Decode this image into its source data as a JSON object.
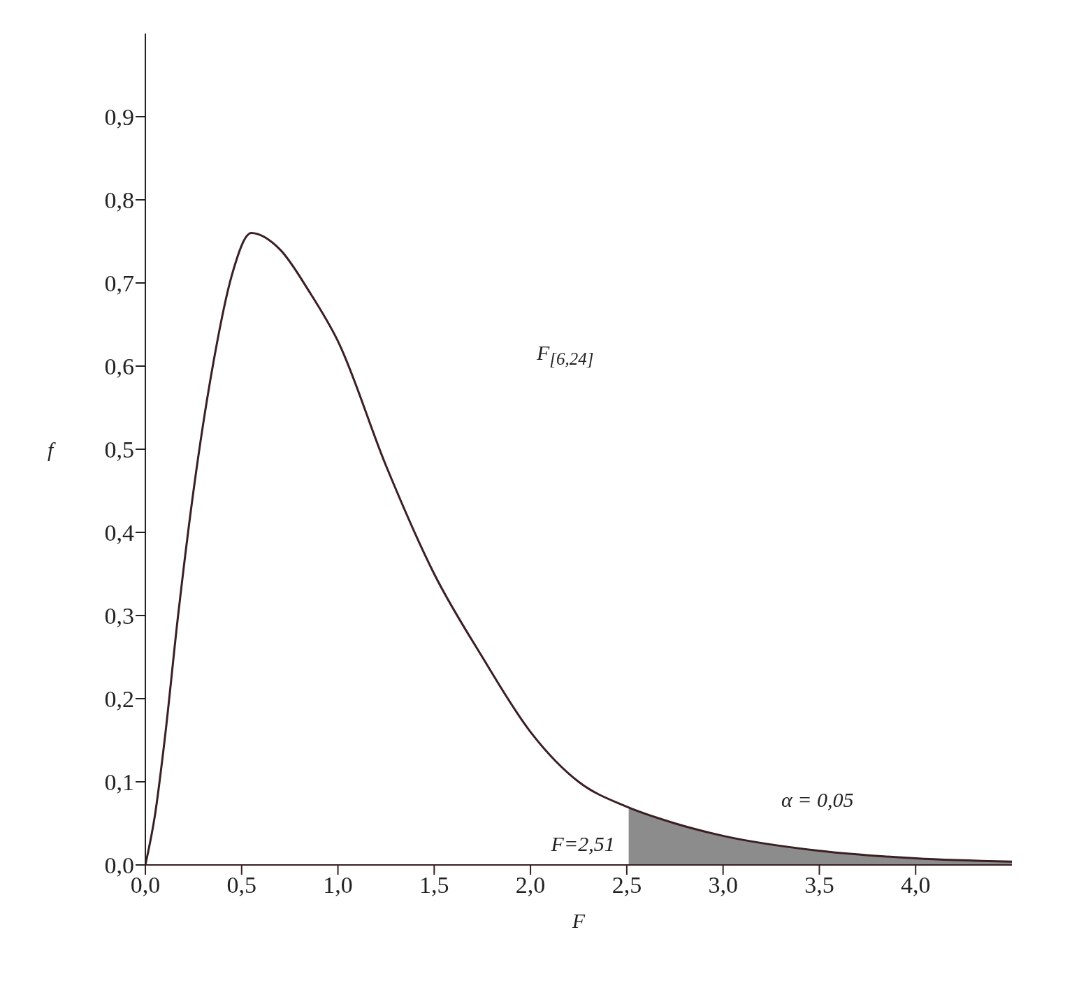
{
  "chart_data": {
    "type": "line",
    "xlabel": "F",
    "ylabel": "f",
    "series": [
      {
        "color": "#3a1f24",
        "x": [
          0,
          0.05,
          0.1,
          0.17,
          0.25,
          0.35,
          0.45,
          0.55,
          0.7,
          0.85,
          1.0,
          1.25,
          1.5,
          1.75,
          2.0,
          2.25,
          2.5,
          2.75,
          3.0,
          3.5,
          4.0,
          4.5
        ],
        "values": [
          0,
          0.06,
          0.15,
          0.3,
          0.45,
          0.6,
          0.71,
          0.76,
          0.74,
          0.69,
          0.63,
          0.48,
          0.35,
          0.25,
          0.16,
          0.1,
          0.07,
          0.05,
          0.035,
          0.017,
          0.008,
          0.004
        ]
      },
      {
        "type": "area",
        "color": "#8c8c8c",
        "x": [
          2.51,
          2.75,
          3.0,
          3.5,
          4.0,
          4.5
        ],
        "values": [
          0.069,
          0.05,
          0.035,
          0.017,
          0.008,
          0.004
        ]
      }
    ],
    "xlim": [
      0,
      4.5
    ],
    "xticks": [
      {
        "value": 0,
        "label": "0,0"
      },
      {
        "value": 0.5,
        "label": "0,5"
      },
      {
        "value": 1,
        "label": "1,0"
      },
      {
        "value": 1.5,
        "label": "1,5"
      },
      {
        "value": 2,
        "label": "2,0"
      },
      {
        "value": 2.5,
        "label": "2,5"
      },
      {
        "value": 3,
        "label": "3,0"
      },
      {
        "value": 3.5,
        "label": "3,5"
      },
      {
        "value": 4,
        "label": "4,0"
      }
    ],
    "ylim": [
      0,
      1
    ],
    "yticks": [
      {
        "value": 0,
        "label": "0,0"
      },
      {
        "value": 0.1,
        "label": "0,1"
      },
      {
        "value": 0.2,
        "label": "0,2"
      },
      {
        "value": 0.3,
        "label": "0,3"
      },
      {
        "value": 0.4,
        "label": "0,4"
      },
      {
        "value": 0.5,
        "label": "0,5"
      },
      {
        "value": 0.6,
        "label": "0,6"
      },
      {
        "value": 0.7,
        "label": "0,7"
      },
      {
        "value": 0.8,
        "label": "0,8"
      },
      {
        "value": 0.9,
        "label": "0,9"
      }
    ],
    "annotations": [
      "F$_{[6,24]}$",
      {
        "text": "F=2,51",
        "x": 2.51,
        "y": 0
      },
      "α = 0,05"
    ],
    "grid": false,
    "legend": false,
    "marker": "none",
    "line_style": "solid"
  }
}
